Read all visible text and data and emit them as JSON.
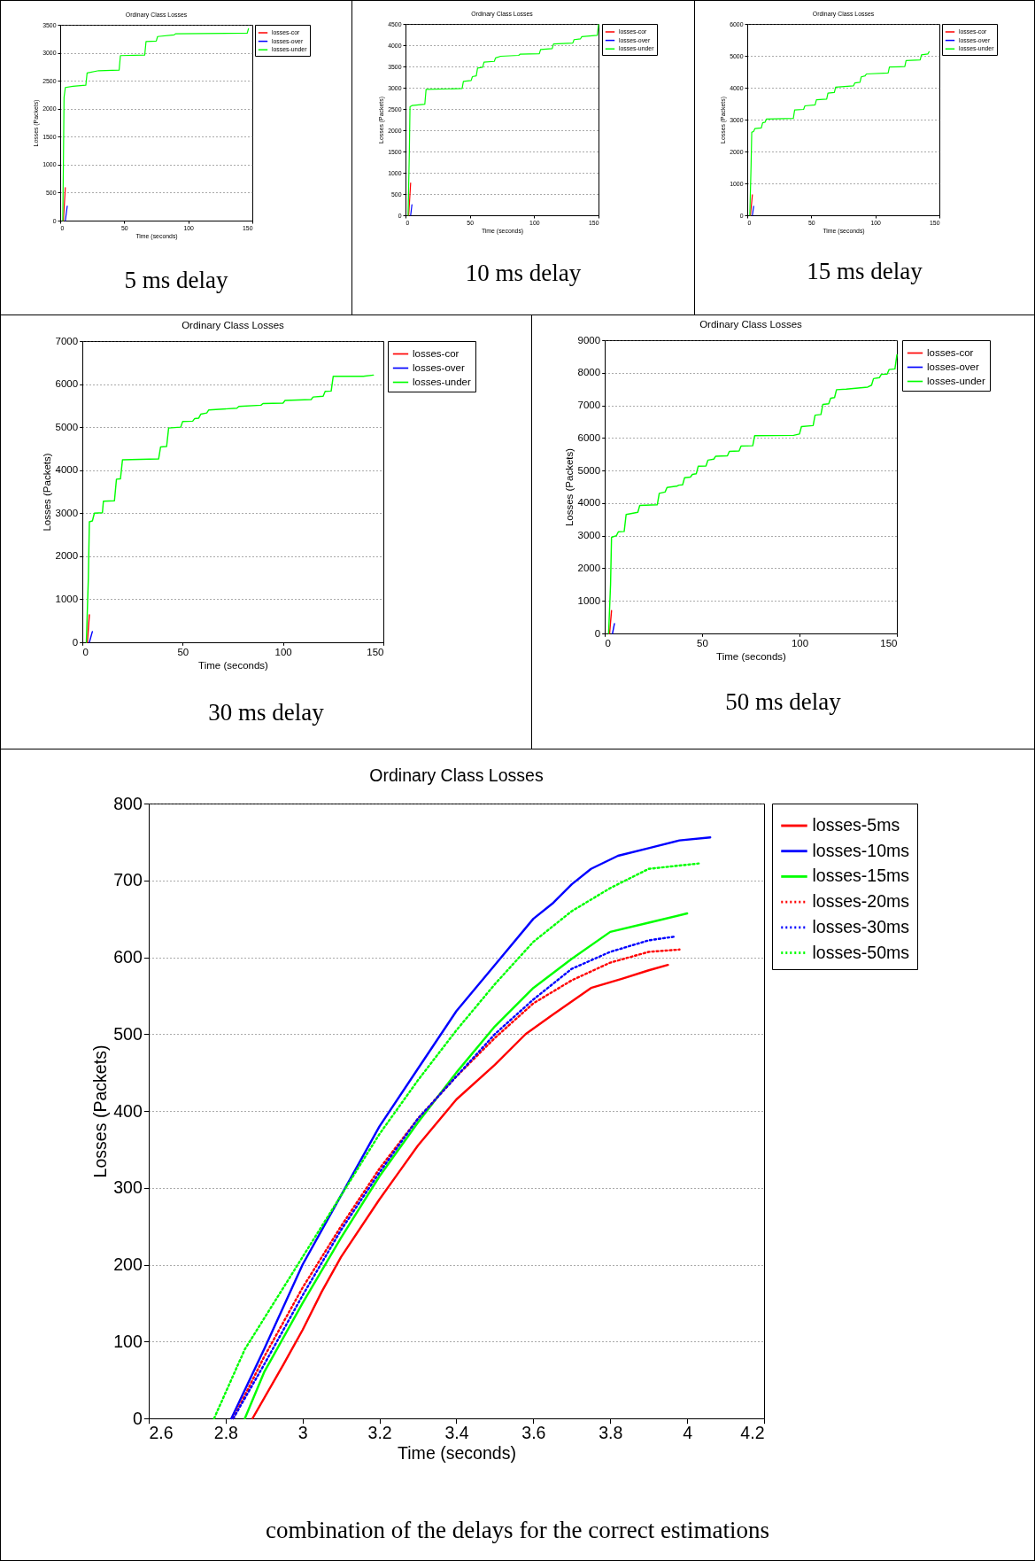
{
  "chart_data": [
    {
      "type": "line",
      "title": "Ordinary Class Losses",
      "xlabel": "Time (seconds)",
      "ylabel": "Losses (Packets)",
      "xlim": [
        0,
        150
      ],
      "xticks": [
        0,
        50,
        100,
        150
      ],
      "ylim": [
        0,
        3500
      ],
      "yticks": [
        0,
        500,
        1000,
        1500,
        2000,
        2500,
        3000,
        3500
      ],
      "grid": "y",
      "legend": "top right",
      "annotations": [
        "5 ms delay"
      ],
      "series": [
        {
          "name": "losses-cor",
          "color": "#ff0000",
          "x": [
            2.5,
            4
          ],
          "values": [
            0,
            590
          ]
        },
        {
          "name": "losses-over",
          "color": "#0000ff",
          "x": [
            4,
            5.5
          ],
          "values": [
            0,
            260
          ]
        },
        {
          "name": "losses-under",
          "color": "#00ff00",
          "x": [
            2,
            2.5,
            3,
            4,
            10,
            20,
            21,
            30,
            46,
            47,
            66,
            67,
            75,
            76,
            89,
            90,
            146,
            147
          ],
          "values": [
            0,
            1000,
            2200,
            2380,
            2400,
            2420,
            2640,
            2680,
            2690,
            2950,
            2960,
            3200,
            3210,
            3290,
            3320,
            3340,
            3350,
            3430
          ]
        }
      ]
    },
    {
      "type": "line",
      "title": "Ordinary Class Losses",
      "xlabel": "Time (seconds)",
      "ylabel": "Losses (Packets)",
      "xlim": [
        0,
        150
      ],
      "xticks": [
        0,
        50,
        100,
        150
      ],
      "ylim": [
        0,
        4500
      ],
      "yticks": [
        0,
        500,
        1000,
        1500,
        2000,
        2500,
        3000,
        3500,
        4000,
        4500
      ],
      "grid": "y",
      "legend": "top right",
      "annotations": [
        "10 ms delay"
      ],
      "series": [
        {
          "name": "losses-cor",
          "color": "#ff0000",
          "x": [
            2.5,
            4
          ],
          "values": [
            0,
            760
          ]
        },
        {
          "name": "losses-over",
          "color": "#0000ff",
          "x": [
            4,
            5
          ],
          "values": [
            0,
            250
          ]
        },
        {
          "name": "losses-under",
          "color": "#00ff00",
          "x": [
            2,
            3,
            3.5,
            5,
            15,
            16,
            44,
            45,
            51,
            52,
            55,
            56,
            60,
            61,
            69,
            70,
            74,
            88,
            89,
            104,
            105,
            114,
            115,
            130,
            131,
            136,
            137,
            149,
            150
          ],
          "values": [
            0,
            1500,
            2550,
            2580,
            2610,
            2960,
            2980,
            3150,
            3170,
            3260,
            3280,
            3460,
            3480,
            3600,
            3620,
            3700,
            3740,
            3760,
            3790,
            3800,
            3900,
            3920,
            4030,
            4050,
            4130,
            4150,
            4200,
            4230,
            4480
          ]
        }
      ]
    },
    {
      "type": "line",
      "title": "Ordinary Class Losses",
      "xlabel": "Time (seconds)",
      "ylabel": "Losses (Packets)",
      "xlim": [
        0,
        150
      ],
      "xticks": [
        0,
        50,
        100,
        150
      ],
      "ylim": [
        0,
        6000
      ],
      "yticks": [
        0,
        1000,
        2000,
        3000,
        4000,
        5000,
        6000
      ],
      "grid": "y",
      "legend": "top right",
      "annotations": [
        "15 ms delay"
      ],
      "series": [
        {
          "name": "losses-cor",
          "color": "#ff0000",
          "x": [
            2.5,
            4
          ],
          "values": [
            0,
            640
          ]
        },
        {
          "name": "losses-over",
          "color": "#0000ff",
          "x": [
            4,
            5
          ],
          "values": [
            0,
            280
          ]
        },
        {
          "name": "losses-under",
          "color": "#00ff00",
          "x": [
            2,
            3,
            3.5,
            5,
            6,
            11,
            12,
            14,
            15,
            36,
            37,
            44,
            45,
            53,
            54,
            62,
            63,
            68,
            69,
            83,
            84,
            88,
            89,
            92,
            93,
            110,
            111,
            123,
            124,
            135,
            136,
            141,
            142
          ],
          "values": [
            0,
            1600,
            2600,
            2630,
            2720,
            2740,
            2900,
            2920,
            3020,
            3040,
            3300,
            3320,
            3430,
            3460,
            3620,
            3640,
            3830,
            3850,
            4020,
            4060,
            4150,
            4170,
            4340,
            4370,
            4430,
            4460,
            4650,
            4660,
            4850,
            4870,
            5030,
            5060,
            5130
          ]
        }
      ]
    },
    {
      "type": "line",
      "title": "Ordinary Class Losses",
      "xlabel": "Time (seconds)",
      "ylabel": "Losses (Packets)",
      "xlim": [
        0,
        150
      ],
      "xticks": [
        0,
        50,
        100,
        150
      ],
      "ylim": [
        0,
        7000
      ],
      "yticks": [
        0,
        1000,
        2000,
        3000,
        4000,
        5000,
        6000,
        7000
      ],
      "grid": "y",
      "legend": "top right",
      "annotations": [
        "30 ms delay"
      ],
      "series": [
        {
          "name": "losses-cor",
          "color": "#ff0000",
          "x": [
            2.5,
            3.5
          ],
          "values": [
            0,
            640
          ]
        },
        {
          "name": "losses-over",
          "color": "#0000ff",
          "x": [
            3.5,
            5
          ],
          "values": [
            0,
            250
          ]
        },
        {
          "name": "losses-under",
          "color": "#00ff00",
          "x": [
            2,
            3,
            3.5,
            5,
            6,
            10,
            10.5,
            16,
            17,
            19,
            20,
            38,
            39,
            42,
            43,
            49,
            50,
            55,
            56,
            58,
            59,
            62,
            63,
            70,
            77,
            78,
            89,
            90,
            100,
            101,
            114,
            115,
            120,
            121,
            124,
            125,
            140,
            145
          ],
          "values": [
            0,
            1500,
            2800,
            2820,
            3000,
            3010,
            3280,
            3290,
            3790,
            3800,
            4240,
            4260,
            4540,
            4550,
            4980,
            5000,
            5130,
            5140,
            5200,
            5210,
            5300,
            5330,
            5400,
            5420,
            5440,
            5480,
            5510,
            5550,
            5560,
            5620,
            5640,
            5700,
            5720,
            5830,
            5840,
            6180,
            6180,
            6210
          ]
        }
      ]
    },
    {
      "type": "line",
      "title": "Ordinary Class Losses",
      "xlabel": "Time (seconds)",
      "ylabel": "Losses (Packets)",
      "xlim": [
        0,
        150
      ],
      "xticks": [
        0,
        50,
        100,
        150
      ],
      "ylim": [
        0,
        9000
      ],
      "yticks": [
        0,
        1000,
        2000,
        3000,
        4000,
        5000,
        6000,
        7000,
        8000,
        9000
      ],
      "grid": "y",
      "legend": "top right",
      "annotations": [
        "50 ms delay"
      ],
      "series": [
        {
          "name": "losses-cor",
          "color": "#ff0000",
          "x": [
            2.5,
            3.5
          ],
          "values": [
            0,
            700
          ]
        },
        {
          "name": "losses-over",
          "color": "#0000ff",
          "x": [
            4,
            5
          ],
          "values": [
            0,
            300
          ]
        },
        {
          "name": "losses-under",
          "color": "#00ff00",
          "x": [
            2,
            3,
            3.5,
            6,
            7,
            10,
            11,
            17,
            18,
            27,
            28,
            31,
            32,
            37,
            38,
            40,
            41,
            44,
            45,
            47,
            48,
            52,
            53,
            56,
            57,
            63,
            64,
            69,
            70,
            76,
            77,
            97,
            100,
            101,
            107,
            108,
            111,
            112,
            115,
            116,
            118,
            119,
            124,
            135,
            137,
            138,
            141,
            142,
            145,
            146,
            149,
            150
          ],
          "values": [
            0,
            1500,
            2950,
            3000,
            3120,
            3130,
            3650,
            3720,
            3930,
            3950,
            4300,
            4340,
            4480,
            4520,
            4550,
            4560,
            4780,
            4800,
            4880,
            4900,
            5130,
            5140,
            5320,
            5350,
            5440,
            5450,
            5590,
            5600,
            5750,
            5760,
            6070,
            6080,
            6120,
            6350,
            6380,
            6700,
            6720,
            7030,
            7050,
            7220,
            7240,
            7480,
            7500,
            7560,
            7620,
            7820,
            7850,
            7950,
            7960,
            8100,
            8120,
            8550
          ]
        }
      ]
    },
    {
      "type": "line",
      "title": "Ordinary Class Losses",
      "xlabel": "Time (seconds)",
      "ylabel": "Losses (Packets)",
      "xlim": [
        2.6,
        4.2
      ],
      "xticks": [
        2.6,
        2.8,
        3,
        3.2,
        3.4,
        3.6,
        3.8,
        4,
        4.2
      ],
      "ylim": [
        0,
        800
      ],
      "yticks": [
        0,
        100,
        200,
        300,
        400,
        500,
        600,
        700,
        800
      ],
      "grid": "y",
      "legend": "top right",
      "annotations": [
        "combination of the delays for the correct estimations"
      ],
      "series": [
        {
          "name": "losses-5ms",
          "color": "#ff0000",
          "line_style": "solid",
          "x": [
            2.87,
            2.95,
            3.0,
            3.05,
            3.1,
            3.2,
            3.25,
            3.3,
            3.4,
            3.5,
            3.58,
            3.65,
            3.75,
            3.83,
            3.9,
            3.95
          ],
          "values": [
            0,
            70,
            115,
            165,
            210,
            285,
            320,
            355,
            415,
            460,
            500,
            525,
            560,
            572,
            583,
            590
          ]
        },
        {
          "name": "losses-10ms",
          "color": "#0000ff",
          "line_style": "solid",
          "x": [
            2.815,
            2.9,
            3.0,
            3.1,
            3.2,
            3.3,
            3.4,
            3.5,
            3.6,
            3.65,
            3.7,
            3.75,
            3.82,
            3.9,
            3.98,
            4.06
          ],
          "values": [
            0,
            90,
            200,
            290,
            380,
            455,
            530,
            590,
            650,
            670,
            695,
            715,
            732,
            742,
            752,
            756
          ]
        },
        {
          "name": "losses-15ms",
          "color": "#00ff00",
          "line_style": "solid",
          "x": [
            2.85,
            2.9,
            3.0,
            3.1,
            3.2,
            3.3,
            3.4,
            3.5,
            3.6,
            3.7,
            3.8,
            3.9,
            4.0
          ],
          "values": [
            0,
            60,
            150,
            235,
            315,
            385,
            450,
            510,
            560,
            598,
            633,
            645,
            657
          ]
        },
        {
          "name": "losses-20ms",
          "color": "#ff0000",
          "line_style": "dotted",
          "x": [
            2.82,
            2.9,
            3.0,
            3.1,
            3.2,
            3.3,
            3.4,
            3.5,
            3.6,
            3.7,
            3.8,
            3.9,
            3.98
          ],
          "values": [
            0,
            80,
            170,
            250,
            325,
            390,
            445,
            495,
            540,
            570,
            593,
            607,
            610
          ]
        },
        {
          "name": "losses-30ms",
          "color": "#0000ff",
          "line_style": "dotted",
          "x": [
            2.82,
            2.9,
            3.0,
            3.1,
            3.2,
            3.3,
            3.4,
            3.5,
            3.6,
            3.7,
            3.8,
            3.9,
            3.97
          ],
          "values": [
            0,
            70,
            160,
            245,
            320,
            390,
            445,
            500,
            545,
            585,
            607,
            622,
            627
          ]
        },
        {
          "name": "losses-50ms",
          "color": "#00ff00",
          "line_style": "dotted",
          "x": [
            2.77,
            2.85,
            2.95,
            3.0,
            3.1,
            3.2,
            3.3,
            3.4,
            3.5,
            3.6,
            3.7,
            3.8,
            3.9,
            4.03
          ],
          "values": [
            0,
            90,
            170,
            210,
            290,
            370,
            440,
            505,
            565,
            620,
            660,
            690,
            715,
            722
          ]
        }
      ]
    }
  ]
}
